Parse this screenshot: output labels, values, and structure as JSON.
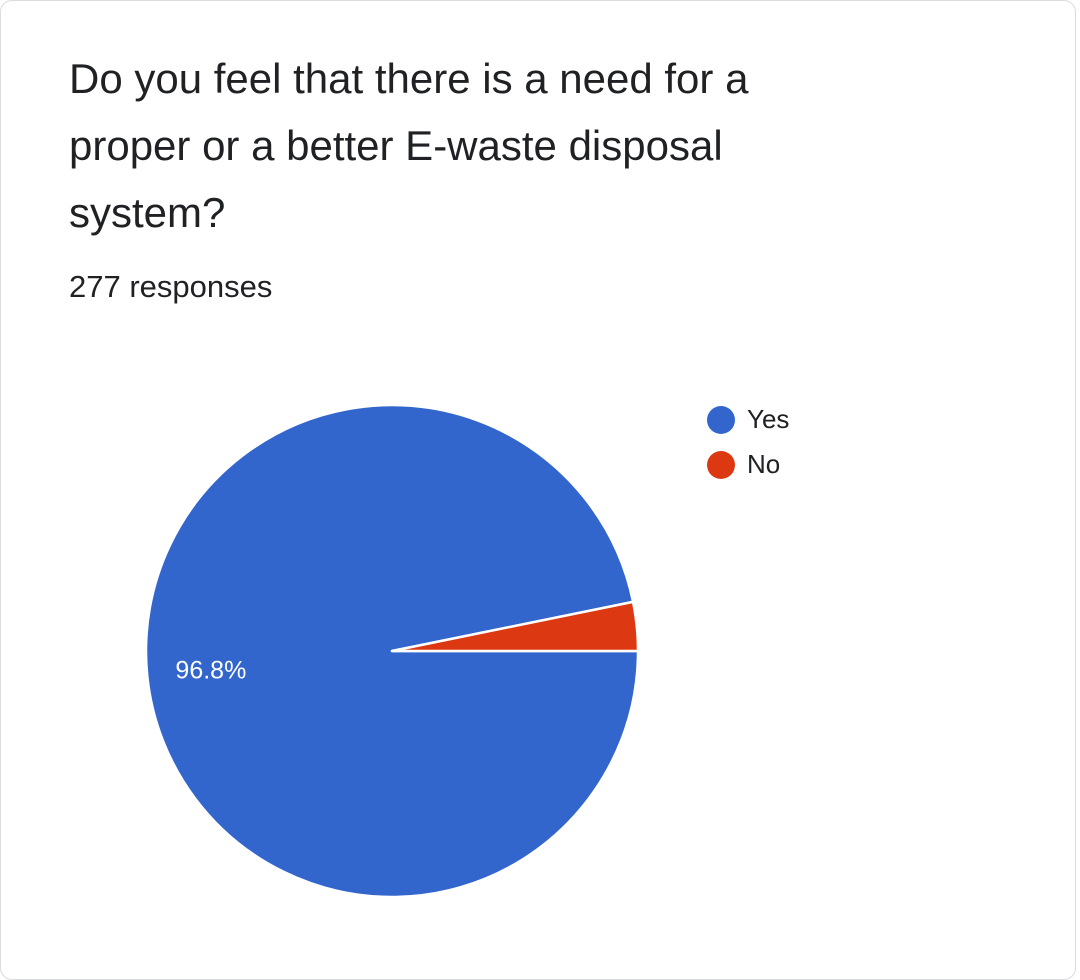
{
  "question": "Do you feel that there is a need for a proper or a better E-waste disposal system?",
  "responses_label": "277 responses",
  "chart_data": {
    "type": "pie",
    "categories": [
      "Yes",
      "No"
    ],
    "values": [
      96.8,
      3.2
    ],
    "unit": "%",
    "data_labels": [
      "96.8%",
      ""
    ],
    "legend": "right",
    "colors": [
      "#3366cc",
      "#dc3912"
    ]
  }
}
